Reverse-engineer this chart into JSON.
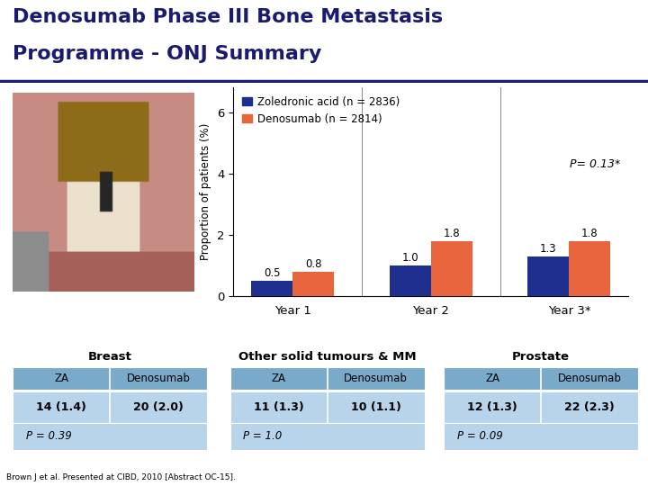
{
  "title_line1": "Denosumab Phase III Bone Metastasis",
  "title_line2": "Programme - ONJ Summary",
  "title_color": "#1a1a6e",
  "title_fontsize": 16,
  "background_color": "#ffffff",
  "bar_categories": [
    "Year 1",
    "Year 2",
    "Year 3*"
  ],
  "za_values": [
    0.5,
    1.0,
    1.3
  ],
  "deno_values": [
    0.8,
    1.8,
    1.8
  ],
  "za_color": "#1f2f8f",
  "deno_color": "#e8643c",
  "ylabel": "Proportion of patients (%)",
  "ylim": [
    0,
    6.8
  ],
  "yticks": [
    0,
    2,
    4,
    6
  ],
  "legend_za": "Zoledronic acid (n = 2836)",
  "legend_deno": "Denosumab (n = 2814)",
  "p_value_text": "P= 0.13*",
  "chart_bg": "#ffffff",
  "tables": [
    {
      "title": "Breast",
      "header": [
        "ZA",
        "Denosumab"
      ],
      "row1": [
        "14 (1.4)",
        "20 (2.0)"
      ],
      "pval": "P = 0.39"
    },
    {
      "title": "Other solid tumours & MM",
      "header": [
        "ZA",
        "Denosumab"
      ],
      "row1": [
        "11 (1.3)",
        "10 (1.1)"
      ],
      "pval": "P = 1.0"
    },
    {
      "title": "Prostate",
      "header": [
        "ZA",
        "Denosumab"
      ],
      "row1": [
        "12 (1.3)",
        "22 (2.3)"
      ],
      "pval": "P = 0.09"
    }
  ],
  "footnote": "Brown J et al. Presented at CIBD, 2010 [Abstract OC-15].",
  "table_header_color": "#7aaaca",
  "table_row_color": "#b8d4ea",
  "table_pval_color": "#b8d4ea"
}
